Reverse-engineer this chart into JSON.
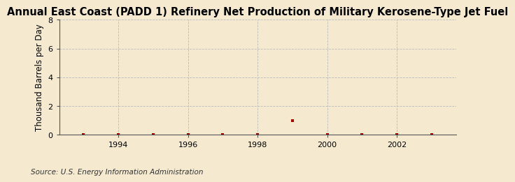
{
  "title": "Annual East Coast (PADD 1) Refinery Net Production of Military Kerosene-Type Jet Fuel",
  "ylabel": "Thousand Barrels per Day",
  "source": "Source: U.S. Energy Information Administration",
  "background_color": "#f5ead0",
  "plot_bg_color": "#f5ead0",
  "x_values": [
    1993,
    1994,
    1995,
    1996,
    1997,
    1998,
    1999,
    2000,
    2001,
    2002,
    2003
  ],
  "y_values": [
    0.0,
    0.03,
    0.03,
    0.03,
    0.03,
    0.03,
    1.0,
    0.03,
    0.03,
    0.03,
    0.03
  ],
  "point_color": "#aa0000",
  "point_marker": "s",
  "point_size": 3,
  "xlim": [
    1992.3,
    2003.7
  ],
  "ylim": [
    0,
    8
  ],
  "yticks": [
    0,
    2,
    4,
    6,
    8
  ],
  "xticks": [
    1994,
    1996,
    1998,
    2000,
    2002
  ],
  "grid_color": "#bbbbbb",
  "grid_style": "--",
  "title_fontsize": 10.5,
  "ylabel_fontsize": 8.5,
  "tick_fontsize": 8,
  "source_fontsize": 7.5
}
